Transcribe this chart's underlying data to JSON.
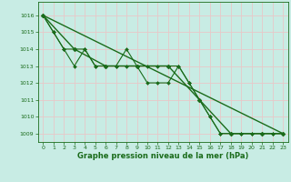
{
  "background_color": "#c8ece4",
  "grid_color": "#e8c8c8",
  "line_color": "#1a6b1a",
  "xlabel": "Graphe pression niveau de la mer (hPa)",
  "xlabel_color": "#1a6b1a",
  "tick_color": "#1a6b1a",
  "xlim": [
    -0.5,
    23.5
  ],
  "ylim": [
    1008.5,
    1016.8
  ],
  "yticks": [
    1009,
    1010,
    1011,
    1012,
    1013,
    1014,
    1015,
    1016
  ],
  "xticks": [
    0,
    1,
    2,
    3,
    4,
    5,
    6,
    7,
    8,
    9,
    10,
    11,
    12,
    13,
    14,
    15,
    16,
    17,
    18,
    19,
    20,
    21,
    22,
    23
  ],
  "series": [
    {
      "x": [
        0,
        1,
        2,
        3,
        4,
        5,
        6,
        7,
        8,
        9,
        10,
        11,
        12,
        13,
        14,
        15,
        16,
        17,
        18,
        19,
        20,
        21,
        22,
        23
      ],
      "y": [
        1016,
        1015,
        1014,
        1014,
        1014,
        1013,
        1013,
        1013,
        1014,
        1013,
        1013,
        1013,
        1013,
        1013,
        1012,
        1011,
        1010,
        1009,
        1009,
        1009,
        1009,
        1009,
        1009,
        1009
      ],
      "marker": "D",
      "markersize": 2.0,
      "linewidth": 0.8
    },
    {
      "x": [
        0,
        1,
        2,
        3,
        4,
        5,
        6,
        7,
        8,
        9,
        10,
        11,
        12,
        13,
        14,
        15,
        16,
        17,
        18,
        19,
        20,
        21,
        22,
        23
      ],
      "y": [
        1016,
        1015,
        1014,
        1013,
        1014,
        1013,
        1013,
        1013,
        1013,
        1013,
        1012,
        1012,
        1012,
        1013,
        1012,
        1011,
        1010,
        1009,
        1009,
        1009,
        1009,
        1009,
        1009,
        1009
      ],
      "marker": "D",
      "markersize": 2.0,
      "linewidth": 0.8
    },
    {
      "x": [
        0,
        3,
        6,
        9,
        12,
        15,
        18,
        21,
        23
      ],
      "y": [
        1016,
        1014,
        1013,
        1013,
        1013,
        1011,
        1009,
        1009,
        1009
      ],
      "marker": "D",
      "markersize": 2.5,
      "linewidth": 1.0
    },
    {
      "x": [
        0,
        23
      ],
      "y": [
        1016,
        1009
      ],
      "marker": null,
      "markersize": 0,
      "linewidth": 1.0
    }
  ],
  "figwidth": 3.2,
  "figheight": 2.0,
  "dpi": 100,
  "tick_labelsize": 4.5,
  "xlabel_fontsize": 6.0
}
